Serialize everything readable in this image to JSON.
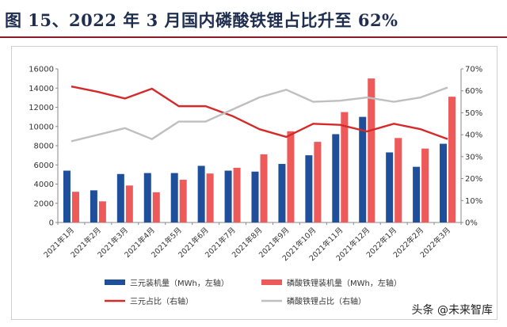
{
  "title": "图 15、2022 年 3 月国内磷酸铁锂占比升至 62%",
  "watermark": "头条 @未来智库",
  "chart_data": {
    "type": "bar",
    "categories": [
      "2021年1月",
      "2021年2月",
      "2021年3月",
      "2021年4月",
      "2021年5月",
      "2021年6月",
      "2021年7月",
      "2021年8月",
      "2021年9月",
      "2021年10月",
      "2021年11月",
      "2021年12月",
      "2022年1月",
      "2022年2月",
      "2022年3月"
    ],
    "left_axis": {
      "min": 0,
      "max": 16000,
      "step": 2000,
      "ticks": [
        "0",
        "2000",
        "4000",
        "6000",
        "8000",
        "10000",
        "12000",
        "14000",
        "16000"
      ]
    },
    "right_axis": {
      "min": 0,
      "max": 0.7,
      "step": 0.1,
      "ticks": [
        "0%",
        "10%",
        "20%",
        "30%",
        "40%",
        "50%",
        "60%",
        "70%"
      ]
    },
    "series": [
      {
        "name": "三元装机量（MWh，左轴）",
        "type": "bar",
        "axis": "left",
        "color": "#1f4e9a",
        "values": [
          5400,
          3350,
          5050,
          5150,
          5150,
          5900,
          5400,
          5300,
          6100,
          7000,
          9200,
          11000,
          7300,
          5800,
          8200
        ]
      },
      {
        "name": "磷酸铁锂装机量（MWh，左轴）",
        "type": "bar",
        "axis": "left",
        "color": "#ee5a5a",
        "values": [
          3200,
          2200,
          3850,
          3150,
          4450,
          5100,
          5700,
          7100,
          9500,
          8400,
          11500,
          15000,
          8800,
          7700,
          13100
        ]
      },
      {
        "name": "三元占比（右轴）",
        "type": "line",
        "axis": "right",
        "color": "#d42a2a",
        "values": [
          0.62,
          0.595,
          0.565,
          0.61,
          0.53,
          0.53,
          0.485,
          0.425,
          0.39,
          0.45,
          0.445,
          0.415,
          0.45,
          0.425,
          0.38
        ]
      },
      {
        "name": "磷酸铁锂占比（右轴）",
        "type": "line",
        "axis": "right",
        "color": "#bfbfbf",
        "values": [
          0.37,
          0.4,
          0.43,
          0.38,
          0.46,
          0.46,
          0.515,
          0.57,
          0.605,
          0.55,
          0.555,
          0.57,
          0.55,
          0.57,
          0.615
        ]
      }
    ],
    "legend_position": "bottom",
    "grid": false
  }
}
